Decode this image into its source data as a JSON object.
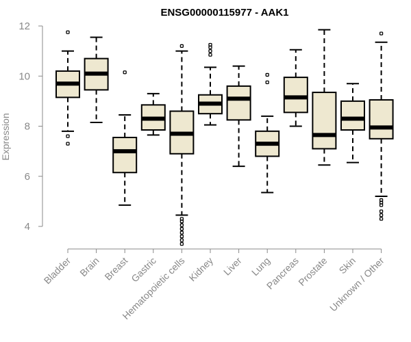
{
  "chart_data": {
    "type": "boxplot",
    "title": "ENSG00000115977 - AAK1",
    "xlabel": "",
    "ylabel": "Expression",
    "ylim": [
      3.2,
      12.2
    ],
    "yticks": [
      4,
      6,
      8,
      10,
      12
    ],
    "box_color": "#EEE8D0",
    "categories": [
      "Bladder",
      "Brain",
      "Breast",
      "Gastric",
      "Hematopoietic cells",
      "Kidney",
      "Liver",
      "Lung",
      "Pancreas",
      "Prostate",
      "Skin",
      "Unknown / Other"
    ],
    "boxes": [
      {
        "name": "Bladder",
        "whisker_low": 7.8,
        "q1": 9.15,
        "median": 9.7,
        "q3": 10.2,
        "whisker_high": 11.0,
        "outliers": [
          7.3,
          7.6,
          11.75
        ]
      },
      {
        "name": "Brain",
        "whisker_low": 8.15,
        "q1": 9.45,
        "median": 10.1,
        "q3": 10.7,
        "whisker_high": 11.55,
        "outliers": []
      },
      {
        "name": "Breast",
        "whisker_low": 4.85,
        "q1": 6.15,
        "median": 7.0,
        "q3": 7.55,
        "whisker_high": 8.45,
        "outliers": [
          10.15
        ]
      },
      {
        "name": "Gastric",
        "whisker_low": 7.65,
        "q1": 7.85,
        "median": 8.3,
        "q3": 8.85,
        "whisker_high": 9.3,
        "outliers": []
      },
      {
        "name": "Hematopoietic cells",
        "whisker_low": 4.45,
        "q1": 6.9,
        "median": 7.7,
        "q3": 8.6,
        "whisker_high": 11.0,
        "outliers": [
          3.3,
          3.45,
          3.6,
          3.75,
          3.9,
          4.05,
          4.2,
          4.3,
          11.2
        ]
      },
      {
        "name": "Kidney",
        "whisker_low": 8.05,
        "q1": 8.5,
        "median": 8.9,
        "q3": 9.25,
        "whisker_high": 10.35,
        "outliers": [
          10.85,
          11.0,
          11.15,
          11.25
        ]
      },
      {
        "name": "Liver",
        "whisker_low": 6.4,
        "q1": 8.25,
        "median": 9.1,
        "q3": 9.6,
        "whisker_high": 10.4,
        "outliers": []
      },
      {
        "name": "Lung",
        "whisker_low": 5.35,
        "q1": 6.8,
        "median": 7.3,
        "q3": 7.8,
        "whisker_high": 8.4,
        "outliers": [
          9.75,
          10.05
        ]
      },
      {
        "name": "Pancreas",
        "whisker_low": 8.0,
        "q1": 8.55,
        "median": 9.15,
        "q3": 9.95,
        "whisker_high": 11.05,
        "outliers": []
      },
      {
        "name": "Prostate",
        "whisker_low": 6.45,
        "q1": 7.1,
        "median": 7.65,
        "q3": 9.35,
        "whisker_high": 11.85,
        "outliers": []
      },
      {
        "name": "Skin",
        "whisker_low": 6.55,
        "q1": 7.85,
        "median": 8.3,
        "q3": 9.0,
        "whisker_high": 9.7,
        "outliers": []
      },
      {
        "name": "Unknown / Other",
        "whisker_low": 5.2,
        "q1": 7.5,
        "median": 7.95,
        "q3": 9.05,
        "whisker_high": 11.35,
        "outliers": [
          4.3,
          4.45,
          4.6,
          4.85,
          4.95,
          5.05,
          11.7
        ]
      }
    ]
  }
}
